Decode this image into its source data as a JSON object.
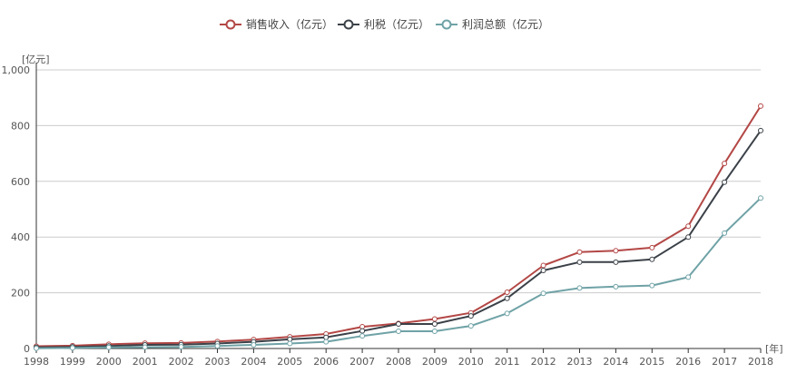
{
  "chart_data": {
    "type": "line",
    "title": "",
    "xlabel": "[年]",
    "ylabel": "[亿元]",
    "x": [
      "1998",
      "1999",
      "2000",
      "2001",
      "2002",
      "2003",
      "2004",
      "2005",
      "2006",
      "2007",
      "2008",
      "2009",
      "2010",
      "2011",
      "2012",
      "2013",
      "2014",
      "2015",
      "2016",
      "2017",
      "2018"
    ],
    "ylim": [
      0,
      1000
    ],
    "yticks": [
      "0",
      "200",
      "400",
      "600",
      "800",
      "1,000"
    ],
    "grid": true,
    "legend_position": "top-center",
    "series": [
      {
        "name": "销售收入（亿元）",
        "color": "#b34745",
        "values": [
          8,
          10,
          15,
          19,
          20,
          25,
          32,
          42,
          52,
          78,
          90,
          106,
          128,
          202,
          298,
          346,
          351,
          362,
          439,
          664,
          870
        ]
      },
      {
        "name": "利税（亿元）",
        "color": "#3b4148",
        "values": [
          4,
          6,
          9,
          13,
          14,
          18,
          24,
          33,
          40,
          63,
          88,
          88,
          117,
          180,
          280,
          310,
          310,
          320,
          400,
          597,
          782
        ]
      },
      {
        "name": "利润总额（亿元）",
        "color": "#6fa2a6",
        "values": [
          1,
          2,
          4,
          5,
          6,
          9,
          13,
          18,
          24,
          45,
          62,
          62,
          81,
          126,
          198,
          217,
          222,
          226,
          256,
          414,
          540
        ]
      }
    ]
  }
}
